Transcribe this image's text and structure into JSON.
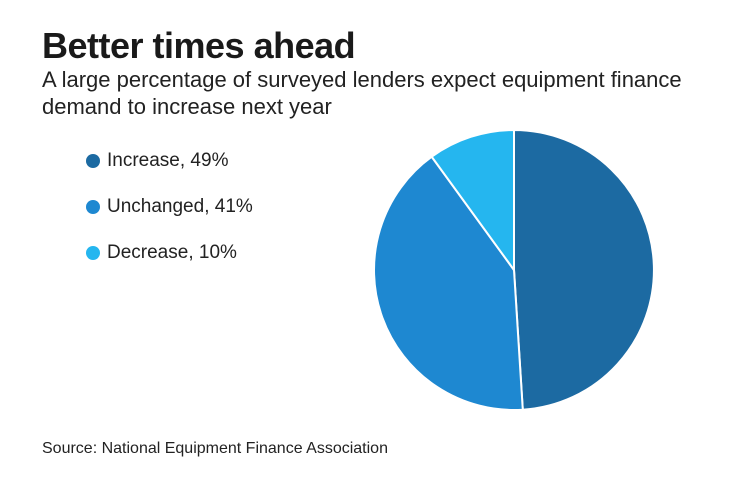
{
  "chart_data": {
    "type": "pie",
    "title": "Better times ahead",
    "subtitle": "A large percentage of surveyed lenders expect equipment finance demand to increase next year",
    "categories": [
      "Increase",
      "Unchanged",
      "Decrease"
    ],
    "values": [
      49,
      41,
      10
    ],
    "unit": "%",
    "legend": [
      {
        "label": "Increase, 49%",
        "color": "#1c6aa2"
      },
      {
        "label": "Unchanged, 41%",
        "color": "#1e88d1"
      },
      {
        "label": "Decrease, 10%",
        "color": "#25b6ef"
      }
    ],
    "legend_position": "left",
    "source": "Source: National Equipment Finance Association"
  }
}
